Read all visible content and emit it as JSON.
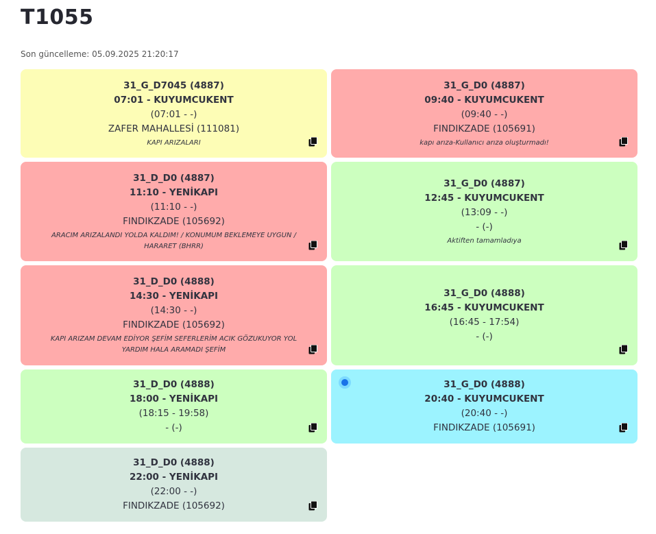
{
  "page": {
    "title": "T1055",
    "updated": "Son güncelleme: 05.09.2025 21:20:17"
  },
  "cards": [
    {
      "line1": "31_G_D7045 (4887)",
      "line2": "07:01 - KUYUMCUKENT",
      "line3": "(07:01 - -)",
      "line4": "ZAFER MAHALLESİ (111081)",
      "note": "KAPI ARIZALARI",
      "color": "#fdfdb6"
    },
    {
      "line1": "31_G_D0 (4887)",
      "line2": "09:40 - KUYUMCUKENT",
      "line3": "(09:40 - -)",
      "line4": "FINDIKZADE (105691)",
      "note": "kapı arıza-Kullanıcı arıza oluşturmadı!",
      "color": "#ffabab"
    },
    {
      "line1": "31_D_D0 (4887)",
      "line2": "11:10 - YENİKAPI",
      "line3": "(11:10 - -)",
      "line4": "FINDIKZADE (105692)",
      "note": "ARACIM ARIZALANDI YOLDA KALDIM! / KONUMUM BEKLEMEYE UYGUN / HARARET (BHRR)",
      "color": "#ffabab"
    },
    {
      "line1": "31_G_D0 (4887)",
      "line2": "12:45 - KUYUMCUKENT",
      "line3": "(13:09 - -)",
      "line4": "- (-)",
      "note": "Aktiften tamamladıya",
      "color": "#ccffbf"
    },
    {
      "line1": "31_D_D0 (4888)",
      "line2": "14:30 - YENİKAPI",
      "line3": "(14:30 - -)",
      "line4": "FINDIKZADE (105692)",
      "note": "KAPI ARIZAM DEVAM EDİYOR ŞEFİM SEFERLERİM ACIK GÖZUKUYOR YOL YARDIM HALA ARAMADI ŞEFİM",
      "color": "#ffabab"
    },
    {
      "line1": "31_G_D0 (4888)",
      "line2": "16:45 - KUYUMCUKENT",
      "line3": "(16:45 - 17:54)",
      "line4": "- (-)",
      "note": "",
      "color": "#ccffbf"
    },
    {
      "line1": "31_D_D0 (4888)",
      "line2": "18:00 - YENİKAPI",
      "line3": "(18:15 - 19:58)",
      "line4": "- (-)",
      "note": "",
      "color": "#ccffbf"
    },
    {
      "line1": "31_G_D0 (4888)",
      "line2": "20:40 - KUYUMCUKENT",
      "line3": "(20:40 - -)",
      "line4": "FINDIKZADE (105691)",
      "note": "",
      "color": "#9cf3ff"
    },
    {
      "line1": "31_D_D0 (4888)",
      "line2": "22:00 - YENİKAPI",
      "line3": "(22:00 - -)",
      "line4": "FINDIKZADE (105692)",
      "note": "",
      "color": "#d6e8df"
    }
  ],
  "icons": {
    "copy": "copy-icon",
    "current": "current-trip-dot-icon"
  }
}
